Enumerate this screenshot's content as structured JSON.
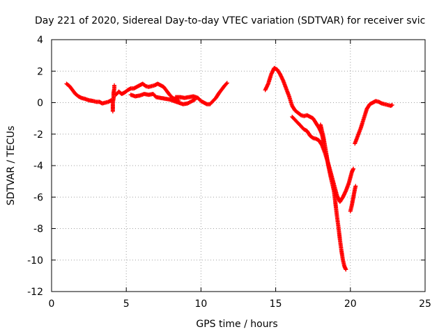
{
  "chart_data": {
    "type": "scatter",
    "title": "Day 221 of 2020, Sidereal Day-to-day VTEC variation (SDTVAR) for receiver svic",
    "xlabel": "GPS time / hours",
    "ylabel": "SDTVAR / TECUs",
    "xlim": [
      0,
      25
    ],
    "ylim": [
      -12,
      4
    ],
    "xticks": [
      "0",
      "5",
      "10",
      "15",
      "20",
      "25"
    ],
    "yticks": [
      "4",
      "2",
      "0",
      "-2",
      "-4",
      "-6",
      "-8",
      "-10",
      "-12"
    ],
    "grid": true,
    "legend": "none",
    "marker": "plus",
    "color": "#ff0000",
    "series": [
      {
        "segments": [
          [
            [
              1.0,
              1.2
            ],
            [
              1.2,
              1.05
            ],
            [
              1.4,
              0.8
            ],
            [
              1.6,
              0.55
            ],
            [
              1.8,
              0.4
            ],
            [
              2.0,
              0.3
            ],
            [
              2.2,
              0.25
            ],
            [
              2.5,
              0.15
            ],
            [
              2.8,
              0.1
            ],
            [
              3.0,
              0.05
            ],
            [
              3.2,
              0.05
            ],
            [
              3.4,
              -0.05
            ],
            [
              3.6,
              0.0
            ],
            [
              3.8,
              0.05
            ],
            [
              4.0,
              0.15
            ]
          ],
          [
            [
              4.1,
              -0.55
            ],
            [
              4.1,
              -0.3
            ],
            [
              4.1,
              0.0
            ],
            [
              4.15,
              0.3
            ],
            [
              4.15,
              0.6
            ],
            [
              4.2,
              0.9
            ],
            [
              4.2,
              1.1
            ]
          ],
          [
            [
              4.3,
              0.5
            ],
            [
              4.5,
              0.7
            ],
            [
              4.7,
              0.55
            ],
            [
              4.9,
              0.65
            ],
            [
              5.1,
              0.8
            ],
            [
              5.3,
              0.9
            ],
            [
              5.5,
              0.9
            ],
            [
              5.7,
              1.0
            ],
            [
              5.9,
              1.1
            ],
            [
              6.1,
              1.2
            ],
            [
              6.3,
              1.05
            ],
            [
              6.5,
              1.0
            ],
            [
              6.7,
              1.05
            ],
            [
              6.9,
              1.1
            ],
            [
              7.1,
              1.2
            ],
            [
              7.3,
              1.1
            ],
            [
              7.5,
              1.0
            ],
            [
              7.7,
              0.75
            ],
            [
              7.9,
              0.5
            ],
            [
              8.1,
              0.3
            ],
            [
              8.3,
              0.2
            ],
            [
              8.5,
              0.15
            ]
          ],
          [
            [
              5.3,
              0.5
            ],
            [
              5.6,
              0.4
            ],
            [
              5.9,
              0.45
            ],
            [
              6.2,
              0.55
            ],
            [
              6.5,
              0.5
            ],
            [
              6.8,
              0.55
            ],
            [
              7.0,
              0.35
            ],
            [
              7.3,
              0.3
            ],
            [
              7.6,
              0.25
            ],
            [
              7.9,
              0.2
            ],
            [
              8.2,
              0.1
            ],
            [
              8.5,
              0.0
            ],
            [
              8.8,
              -0.1
            ],
            [
              9.1,
              -0.05
            ],
            [
              9.4,
              0.1
            ],
            [
              9.6,
              0.2
            ]
          ],
          [
            [
              8.3,
              0.35
            ],
            [
              8.6,
              0.35
            ],
            [
              8.9,
              0.3
            ],
            [
              9.2,
              0.35
            ],
            [
              9.5,
              0.4
            ],
            [
              9.8,
              0.3
            ],
            [
              10.0,
              0.1
            ],
            [
              10.2,
              0.0
            ],
            [
              10.4,
              -0.1
            ],
            [
              10.6,
              -0.1
            ],
            [
              10.8,
              0.1
            ],
            [
              11.0,
              0.3
            ],
            [
              11.2,
              0.6
            ],
            [
              11.4,
              0.85
            ],
            [
              11.6,
              1.1
            ],
            [
              11.75,
              1.25
            ]
          ],
          [
            [
              14.3,
              0.8
            ],
            [
              14.5,
              1.2
            ],
            [
              14.7,
              1.8
            ],
            [
              14.9,
              2.2
            ],
            [
              15.1,
              2.1
            ],
            [
              15.3,
              1.8
            ],
            [
              15.5,
              1.4
            ],
            [
              15.7,
              0.9
            ],
            [
              15.9,
              0.4
            ],
            [
              16.1,
              -0.2
            ],
            [
              16.3,
              -0.5
            ],
            [
              16.5,
              -0.65
            ],
            [
              16.7,
              -0.8
            ],
            [
              16.9,
              -0.85
            ],
            [
              17.1,
              -0.8
            ],
            [
              17.3,
              -0.9
            ],
            [
              17.5,
              -1.0
            ],
            [
              17.7,
              -1.3
            ],
            [
              17.9,
              -1.6
            ],
            [
              18.1,
              -2.0
            ],
            [
              18.2,
              -2.5
            ]
          ],
          [
            [
              16.1,
              -0.9
            ],
            [
              16.3,
              -1.1
            ],
            [
              16.5,
              -1.3
            ],
            [
              16.7,
              -1.5
            ],
            [
              16.9,
              -1.7
            ],
            [
              17.1,
              -1.8
            ],
            [
              17.3,
              -2.1
            ],
            [
              17.5,
              -2.25
            ],
            [
              17.7,
              -2.3
            ],
            [
              17.9,
              -2.4
            ],
            [
              18.1,
              -2.7
            ],
            [
              18.3,
              -3.2
            ],
            [
              18.5,
              -3.8
            ],
            [
              18.7,
              -4.5
            ],
            [
              18.9,
              -5.2
            ],
            [
              19.1,
              -5.9
            ],
            [
              19.3,
              -6.3
            ],
            [
              19.5,
              -6.0
            ],
            [
              19.7,
              -5.6
            ],
            [
              19.9,
              -5.1
            ],
            [
              20.1,
              -4.4
            ],
            [
              20.2,
              -4.2
            ]
          ],
          [
            [
              18.0,
              -1.4
            ],
            [
              18.2,
              -2.2
            ],
            [
              18.4,
              -3.3
            ],
            [
              18.5,
              -3.9
            ],
            [
              18.7,
              -4.8
            ],
            [
              18.9,
              -5.6
            ],
            [
              19.0,
              -6.4
            ],
            [
              19.1,
              -7.2
            ],
            [
              19.2,
              -7.9
            ],
            [
              19.3,
              -8.7
            ],
            [
              19.4,
              -9.4
            ],
            [
              19.5,
              -10.0
            ],
            [
              19.6,
              -10.4
            ],
            [
              19.7,
              -10.6
            ]
          ],
          [
            [
              20.0,
              -6.9
            ],
            [
              20.1,
              -6.5
            ],
            [
              20.2,
              -6.0
            ],
            [
              20.3,
              -5.5
            ],
            [
              20.35,
              -5.3
            ]
          ],
          [
            [
              20.3,
              -2.6
            ],
            [
              20.5,
              -2.1
            ],
            [
              20.7,
              -1.6
            ],
            [
              20.9,
              -1.0
            ],
            [
              21.1,
              -0.4
            ],
            [
              21.3,
              -0.1
            ],
            [
              21.5,
              0.0
            ],
            [
              21.7,
              0.1
            ],
            [
              21.9,
              0.05
            ],
            [
              22.1,
              -0.05
            ],
            [
              22.3,
              -0.1
            ],
            [
              22.5,
              -0.15
            ],
            [
              22.7,
              -0.2
            ],
            [
              22.8,
              -0.15
            ]
          ]
        ]
      }
    ]
  }
}
